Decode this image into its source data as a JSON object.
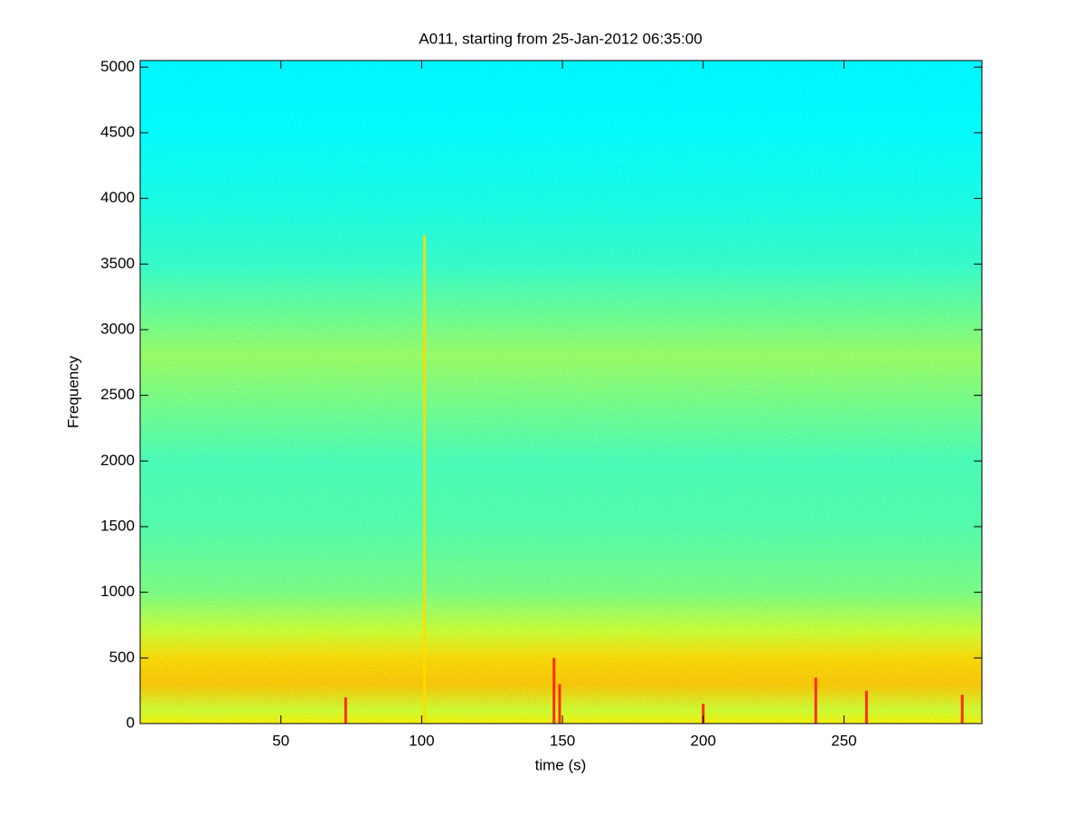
{
  "chart_data": {
    "type": "spectrogram",
    "title": "A011, starting from 25-Jan-2012 06:35:00",
    "xlabel": "time (s)",
    "ylabel": "Frequency",
    "colormap": "jet",
    "xlim": [
      0,
      299
    ],
    "ylim": [
      0,
      5050
    ],
    "xticks": [
      50,
      100,
      150,
      200,
      250
    ],
    "yticks": [
      0,
      500,
      1000,
      1500,
      2000,
      2500,
      3000,
      3500,
      4000,
      4500,
      5000
    ],
    "frequencies": [
      0,
      100,
      300,
      500,
      700,
      1000,
      1500,
      2000,
      2500,
      2800,
      3000,
      3500,
      4000,
      4500,
      5050
    ],
    "levels": [
      0.64,
      0.58,
      0.68,
      0.66,
      0.58,
      0.5,
      0.46,
      0.45,
      0.5,
      0.53,
      0.5,
      0.43,
      0.4,
      0.38,
      0.37
    ],
    "events": [
      {
        "time": 101,
        "fmax": 3720,
        "level": 0.66
      },
      {
        "time": 73,
        "fmax": 200,
        "level": 0.85
      },
      {
        "time": 147,
        "fmax": 500,
        "level": 0.85
      },
      {
        "time": 149,
        "fmax": 300,
        "level": 0.85
      },
      {
        "time": 200,
        "fmax": 150,
        "level": 0.85
      },
      {
        "time": 240,
        "fmax": 350,
        "level": 0.85
      },
      {
        "time": 258,
        "fmax": 250,
        "level": 0.85
      },
      {
        "time": 292,
        "fmax": 220,
        "level": 0.85
      }
    ]
  }
}
